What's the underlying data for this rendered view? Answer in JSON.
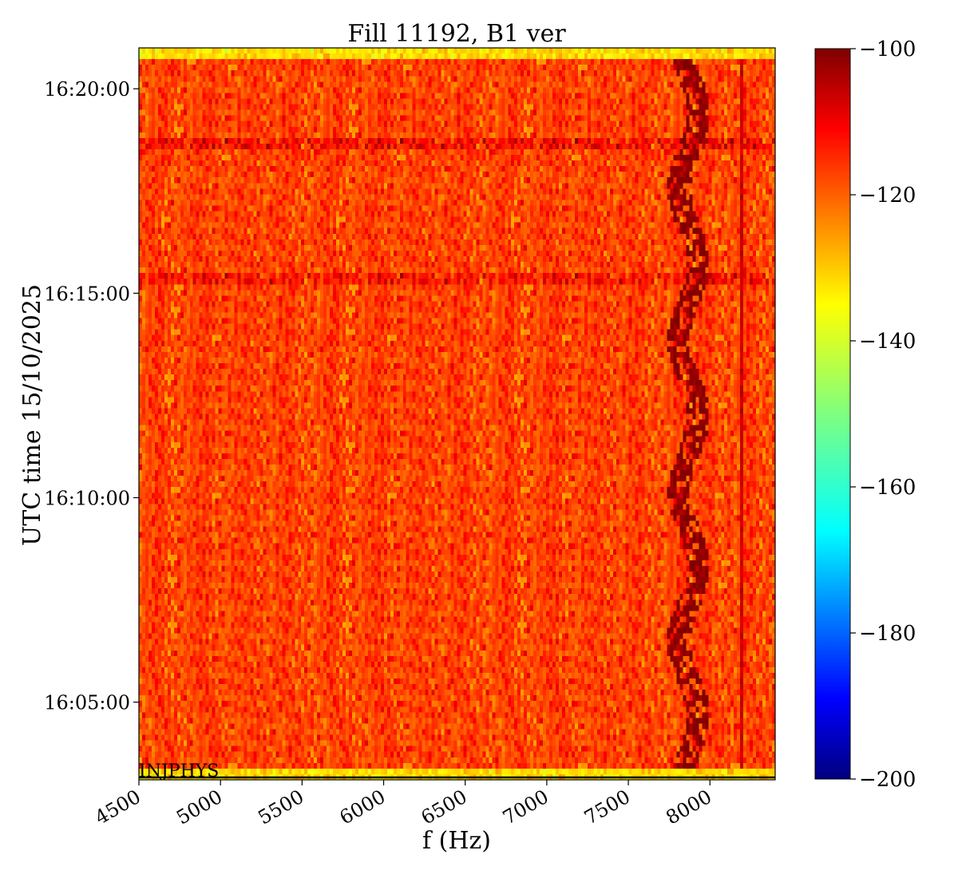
{
  "chart_data": {
    "type": "heatmap",
    "title": "Fill 11192, B1 ver",
    "xlabel": "f (Hz)",
    "ylabel": "UTC time 15/10/2025",
    "xlim": [
      4500,
      8400
    ],
    "xticks": [
      {
        "value": 4500,
        "label": "4500"
      },
      {
        "value": 5000,
        "label": "5000"
      },
      {
        "value": 5500,
        "label": "5500"
      },
      {
        "value": 6000,
        "label": "6000"
      },
      {
        "value": 6500,
        "label": "6500"
      },
      {
        "value": 7000,
        "label": "7000"
      },
      {
        "value": 7500,
        "label": "7500"
      },
      {
        "value": 8000,
        "label": "8000"
      }
    ],
    "ylim_minutes_of_hour16": [
      3.1,
      21.0
    ],
    "yticks": [
      {
        "minutes": 5,
        "label": "16:05:00"
      },
      {
        "minutes": 10,
        "label": "16:10:00"
      },
      {
        "minutes": 15,
        "label": "16:15:00"
      },
      {
        "minutes": 20,
        "label": "16:20:00"
      }
    ],
    "colorbar": {
      "colormap": "jet",
      "range": [
        -200,
        -100
      ],
      "ticks": [
        {
          "value": -100,
          "label": "−100"
        },
        {
          "value": -120,
          "label": "−120"
        },
        {
          "value": -140,
          "label": "−140"
        },
        {
          "value": -160,
          "label": "−160"
        },
        {
          "value": -180,
          "label": "−180"
        },
        {
          "value": -200,
          "label": "−200"
        }
      ]
    },
    "background_level": -120,
    "edge_band_level": -135,
    "features": [
      {
        "type": "wandering-line",
        "f_center_hz": 7870,
        "f_spread_hz": 120,
        "level": -102,
        "time_range_min": [
          3.1,
          21.0
        ]
      },
      {
        "type": "vertical-line",
        "f_hz": 8200,
        "level": -108,
        "time_range_min": [
          3.1,
          21.0
        ]
      },
      {
        "type": "horizontal-band",
        "time_min": 18.7,
        "level": -110
      },
      {
        "type": "horizontal-band",
        "time_min": 15.4,
        "level": -112
      }
    ],
    "annotations": [
      {
        "label": "INJPHYS",
        "time_min": 3.1
      }
    ]
  }
}
